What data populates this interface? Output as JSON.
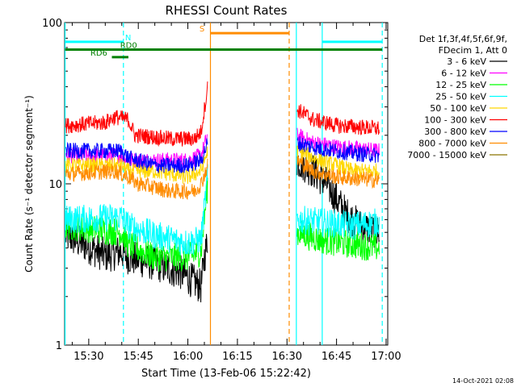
{
  "chart_data": {
    "type": "line",
    "title": "RHESSI Count Rates",
    "xlabel": "Start Time (13-Feb-06 15:22:42)",
    "ylabel": "Count Rate (s⁻¹ detector segment⁻¹)",
    "y_scale": "log",
    "ylim": [
      1,
      100
    ],
    "xlim": [
      "15:22:42",
      "17:00:30"
    ],
    "x_ticks": [
      "15:30",
      "15:45",
      "16:00",
      "16:15",
      "16:30",
      "16:45",
      "17:00"
    ],
    "y_ticks": [
      "1",
      "10",
      "100"
    ],
    "grid": false,
    "timestamp": "14-Oct-2021 02:08",
    "legend": {
      "placement": "right",
      "header": [
        "Det 1f,3f,4f,5f,6f,9f,",
        "FDecim 1, Att 0"
      ],
      "entries": [
        {
          "name": "3 - 6 keV",
          "color": "#000000"
        },
        {
          "name": "6 - 12 keV",
          "color": "#ff00ff"
        },
        {
          "name": "12 - 25 keV",
          "color": "#00ff00"
        },
        {
          "name": "25 - 50 keV",
          "color": "#00ffff"
        },
        {
          "name": "50 - 100 keV",
          "color": "#ffd700"
        },
        {
          "name": "100 - 300 keV",
          "color": "#ff0000"
        },
        {
          "name": "300 - 800 keV",
          "color": "#0000ff"
        },
        {
          "name": "800 - 7000 keV",
          "color": "#ff8c00"
        },
        {
          "name": "7000 - 15000 keV",
          "color": "#8b7500"
        }
      ]
    },
    "gaps": [
      [
        "16:06",
        "16:33"
      ]
    ],
    "series": [
      {
        "name": "3 - 6 keV",
        "color": "#000000",
        "points": [
          [
            "15:23",
            4.8
          ],
          [
            "15:35",
            3.6
          ],
          [
            "15:40",
            3.8
          ],
          [
            "15:42",
            3.5
          ],
          [
            "15:50",
            3.2
          ],
          [
            "15:58",
            2.8
          ],
          [
            "16:04",
            2.3
          ],
          [
            "16:05",
            3.5
          ],
          [
            "16:06",
            4.5
          ],
          [
            "16:33",
            14
          ],
          [
            "16:38",
            12
          ],
          [
            "16:42",
            10
          ],
          [
            "16:45",
            8
          ],
          [
            "16:48",
            6.5
          ],
          [
            "16:52",
            5.5
          ],
          [
            "16:58",
            5
          ]
        ]
      },
      {
        "name": "6 - 12 keV",
        "color": "#ff00ff",
        "points": [
          [
            "15:23",
            15
          ],
          [
            "15:40",
            15
          ],
          [
            "15:42",
            14
          ],
          [
            "15:50",
            14
          ],
          [
            "16:00",
            14
          ],
          [
            "16:04",
            15
          ],
          [
            "16:06",
            20
          ],
          [
            "16:33",
            20
          ],
          [
            "16:38",
            18
          ],
          [
            "16:45",
            17
          ],
          [
            "16:58",
            16
          ]
        ]
      },
      {
        "name": "12 - 25 keV",
        "color": "#00ff00",
        "points": [
          [
            "15:23",
            5.5
          ],
          [
            "15:40",
            5
          ],
          [
            "15:42",
            4.2
          ],
          [
            "15:50",
            3.5
          ],
          [
            "16:00",
            3.5
          ],
          [
            "16:04",
            3.8
          ],
          [
            "16:06",
            10
          ],
          [
            "16:33",
            5
          ],
          [
            "16:40",
            4.5
          ],
          [
            "16:50",
            4.2
          ],
          [
            "16:58",
            4
          ]
        ]
      },
      {
        "name": "25 - 50 keV",
        "color": "#00ffff",
        "points": [
          [
            "15:23",
            6
          ],
          [
            "15:40",
            6.2
          ],
          [
            "15:42",
            5.5
          ],
          [
            "15:50",
            4.8
          ],
          [
            "16:00",
            4.3
          ],
          [
            "16:04",
            4.5
          ],
          [
            "16:06",
            11
          ],
          [
            "16:33",
            6
          ],
          [
            "16:40",
            5.8
          ],
          [
            "16:50",
            5.5
          ],
          [
            "16:58",
            5.8
          ]
        ]
      },
      {
        "name": "50 - 100 keV",
        "color": "#ffd700",
        "points": [
          [
            "15:23",
            13
          ],
          [
            "15:40",
            13
          ],
          [
            "15:42",
            12
          ],
          [
            "15:50",
            12
          ],
          [
            "16:00",
            11
          ],
          [
            "16:04",
            12
          ],
          [
            "16:06",
            16
          ],
          [
            "16:33",
            16
          ],
          [
            "16:40",
            14
          ],
          [
            "16:50",
            12
          ],
          [
            "16:58",
            12
          ]
        ]
      },
      {
        "name": "100 - 300 keV",
        "color": "#ff0000",
        "points": [
          [
            "15:23",
            23
          ],
          [
            "15:35",
            24
          ],
          [
            "15:38",
            26
          ],
          [
            "15:42",
            25
          ],
          [
            "15:44",
            20
          ],
          [
            "15:55",
            19
          ],
          [
            "16:02",
            19
          ],
          [
            "16:04",
            21
          ],
          [
            "16:06",
            40
          ],
          [
            "16:33",
            29
          ],
          [
            "16:38",
            25
          ],
          [
            "16:45",
            23
          ],
          [
            "16:58",
            22
          ]
        ]
      },
      {
        "name": "300 - 800 keV",
        "color": "#0000ff",
        "points": [
          [
            "15:23",
            16
          ],
          [
            "15:40",
            16
          ],
          [
            "15:42",
            14.5
          ],
          [
            "15:50",
            13
          ],
          [
            "16:00",
            13
          ],
          [
            "16:04",
            14
          ],
          [
            "16:06",
            18
          ],
          [
            "16:33",
            18
          ],
          [
            "16:40",
            16.5
          ],
          [
            "16:50",
            15.5
          ],
          [
            "16:58",
            15
          ]
        ]
      },
      {
        "name": "800 - 7000 keV",
        "color": "#ff8c00",
        "points": [
          [
            "15:23",
            11.5
          ],
          [
            "15:38",
            12
          ],
          [
            "15:42",
            11
          ],
          [
            "15:45",
            10
          ],
          [
            "15:55",
            9
          ],
          [
            "16:02",
            9
          ],
          [
            "16:04",
            10
          ],
          [
            "16:06",
            13
          ],
          [
            "16:33",
            14
          ],
          [
            "16:38",
            12
          ],
          [
            "16:45",
            11
          ],
          [
            "16:58",
            10.5
          ]
        ]
      },
      {
        "name": "7000 - 15000 keV",
        "color": "#8b7500",
        "points": []
      }
    ],
    "vertical_markers": [
      {
        "time": "15:22:50",
        "color": "#00ffff",
        "style": "solid"
      },
      {
        "time": "15:40:30",
        "color": "#00ffff",
        "style": "dashed"
      },
      {
        "time": "16:06:50",
        "color": "#ff8c00",
        "style": "solid"
      },
      {
        "time": "16:30:40",
        "color": "#ff8c00",
        "style": "dashed"
      },
      {
        "time": "16:32:50",
        "color": "#00ffff",
        "style": "solid"
      },
      {
        "time": "16:40:40",
        "color": "#00ffff",
        "style": "solid"
      },
      {
        "time": "16:58:50",
        "color": "#00ffff",
        "style": "dashed"
      }
    ],
    "flag_bars": [
      {
        "label": "N",
        "color": "#00ffff",
        "y": 76,
        "start": "15:22:50",
        "end": "15:40:30",
        "label_at": "15:41:00"
      },
      {
        "label": "",
        "color": "#00ffff",
        "y": 76,
        "start": "16:40:40",
        "end": "16:58:50",
        "label_at": ""
      },
      {
        "label": "S",
        "color": "#ff8c00",
        "y": 86,
        "start": "16:06:50",
        "end": "16:30:40",
        "label_at": "16:03:30"
      },
      {
        "label": "RD0",
        "color": "#008000",
        "y": 68,
        "start": "15:37:00",
        "end": "16:58:50",
        "label_at": "15:39:30"
      },
      {
        "label": "",
        "color": "#008000",
        "y": 68,
        "start": "15:22:50",
        "end": "15:37:00",
        "label_at": ""
      },
      {
        "label": "RD6",
        "color": "#008000",
        "y": 61,
        "start": "15:37:00",
        "end": "15:42:00",
        "label_at": "15:30:30"
      }
    ]
  }
}
